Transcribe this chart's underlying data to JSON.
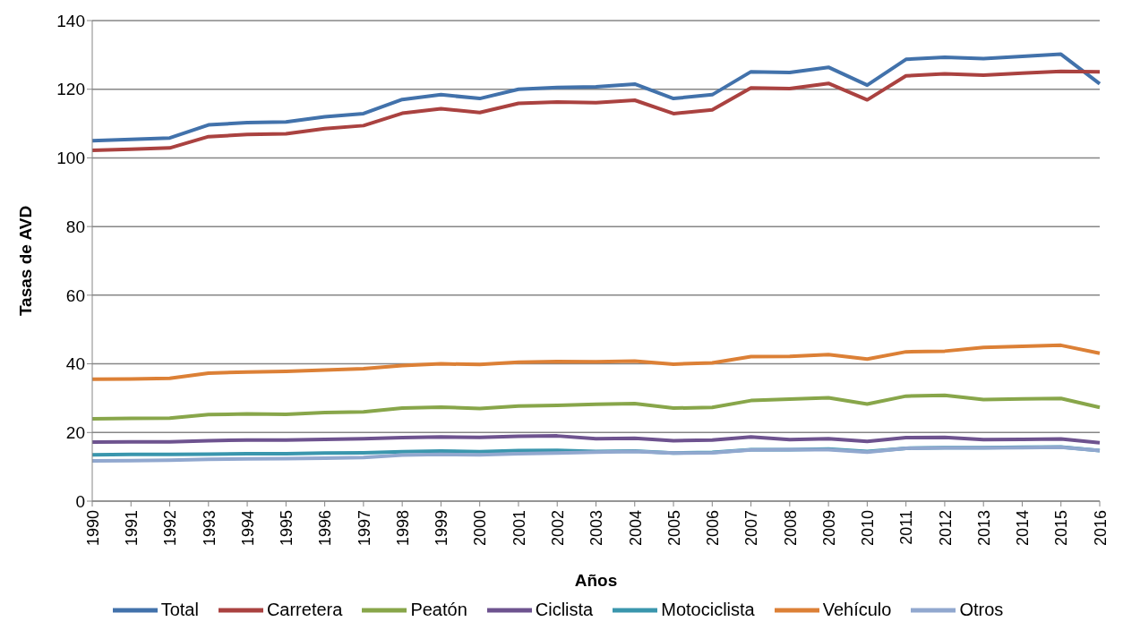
{
  "chart_data": {
    "type": "line",
    "xlabel": "Años",
    "ylabel": "Tasas de AVD",
    "categories": [
      "1990",
      "1991",
      "1992",
      "1993",
      "1994",
      "1995",
      "1996",
      "1997",
      "1998",
      "1999",
      "2000",
      "2001",
      "2002",
      "2003",
      "2004",
      "2005",
      "2006",
      "2007",
      "2008",
      "2009",
      "2010",
      "2011",
      "2012",
      "2013",
      "2014",
      "2015",
      "2016"
    ],
    "series": [
      {
        "name": "Total",
        "color": "#4272ab",
        "values": [
          105.0,
          105.4,
          105.8,
          109.6,
          110.3,
          110.5,
          112.0,
          112.9,
          117.0,
          118.4,
          117.3,
          120.0,
          120.5,
          120.7,
          121.5,
          117.3,
          118.4,
          125.1,
          124.9,
          126.4,
          121.2,
          128.7,
          129.3,
          128.9,
          129.6,
          130.2,
          121.6
        ]
      },
      {
        "name": "Carretera",
        "color": "#aa4240",
        "values": [
          102.2,
          102.5,
          102.9,
          106.2,
          106.8,
          107.0,
          108.5,
          109.4,
          113.0,
          114.3,
          113.2,
          115.9,
          116.3,
          116.1,
          116.8,
          112.9,
          114.0,
          120.4,
          120.2,
          121.7,
          116.9,
          123.9,
          124.5,
          124.1,
          124.7,
          125.2,
          125.1
        ]
      },
      {
        "name": "Peatón",
        "color": "#88a64a",
        "values": [
          24.0,
          24.1,
          24.2,
          25.2,
          25.4,
          25.3,
          25.8,
          26.0,
          27.1,
          27.4,
          27.0,
          27.7,
          27.9,
          28.2,
          28.4,
          27.1,
          27.3,
          29.3,
          29.7,
          30.1,
          28.3,
          30.6,
          30.8,
          29.6,
          29.8,
          29.9,
          27.3
        ]
      },
      {
        "name": "Ciclista",
        "color": "#6e538f",
        "values": [
          17.2,
          17.3,
          17.3,
          17.6,
          17.8,
          17.8,
          18.0,
          18.2,
          18.5,
          18.7,
          18.6,
          18.9,
          19.0,
          18.2,
          18.3,
          17.6,
          17.8,
          18.7,
          17.9,
          18.2,
          17.4,
          18.5,
          18.6,
          17.9,
          18.0,
          18.1,
          17.0
        ]
      },
      {
        "name": "Motociclista",
        "color": "#3a96ad",
        "values": [
          13.5,
          13.6,
          13.6,
          13.7,
          13.8,
          13.8,
          14.0,
          14.1,
          14.4,
          14.6,
          14.4,
          14.7,
          14.8,
          14.5,
          14.6,
          14.0,
          14.2,
          15.0,
          15.0,
          15.2,
          14.5,
          15.4,
          15.6,
          15.6,
          15.7,
          15.8,
          14.7
        ]
      },
      {
        "name": "Vehículo",
        "color": "#dc8036",
        "values": [
          35.5,
          35.6,
          35.8,
          37.3,
          37.6,
          37.8,
          38.2,
          38.6,
          39.5,
          40.0,
          39.8,
          40.5,
          40.7,
          40.6,
          40.8,
          39.9,
          40.3,
          42.1,
          42.2,
          42.7,
          41.4,
          43.5,
          43.7,
          44.8,
          45.1,
          45.4,
          43.1
        ]
      },
      {
        "name": "Otros",
        "color": "#91a8cf",
        "values": [
          11.7,
          11.8,
          11.9,
          12.2,
          12.3,
          12.4,
          12.5,
          12.7,
          13.4,
          13.6,
          13.5,
          13.8,
          14.0,
          14.3,
          14.5,
          14.0,
          14.1,
          14.9,
          15.0,
          15.0,
          14.3,
          15.4,
          15.5,
          15.5,
          15.6,
          15.7,
          14.7
        ]
      }
    ],
    "ylim": [
      0,
      140
    ],
    "yticks": [
      0,
      20,
      40,
      60,
      80,
      100,
      120,
      140
    ],
    "grid": "y",
    "legend": "bottom",
    "marker": "none",
    "line_style": "solid"
  }
}
